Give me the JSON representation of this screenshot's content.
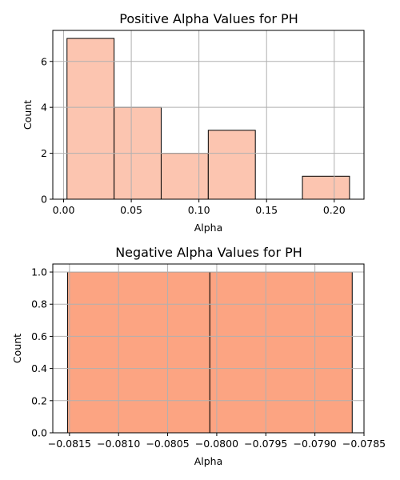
{
  "chart_data": [
    {
      "type": "bar",
      "title": "Positive Alpha Values for PH",
      "xlabel": "Alpha",
      "ylabel": "Count",
      "bins": [
        {
          "start": 0.0025,
          "end": 0.0373,
          "count": 7
        },
        {
          "start": 0.0373,
          "end": 0.0721,
          "count": 4
        },
        {
          "start": 0.0721,
          "end": 0.1069,
          "count": 2
        },
        {
          "start": 0.1069,
          "end": 0.1417,
          "count": 3
        },
        {
          "start": 0.1417,
          "end": 0.1765,
          "count": 0
        },
        {
          "start": 0.1765,
          "end": 0.2113,
          "count": 1
        }
      ],
      "xlim": [
        -0.008,
        0.222
      ],
      "ylim": [
        0,
        7.35
      ],
      "xticks": [
        0.0,
        0.05,
        0.1,
        0.15,
        0.2
      ],
      "xtick_labels": [
        "0.00",
        "0.05",
        "0.10",
        "0.15",
        "0.20"
      ],
      "yticks": [
        0,
        2,
        4,
        6
      ],
      "ytick_labels": [
        "0",
        "2",
        "4",
        "6"
      ],
      "grid": true,
      "bar_color": "#fcc5b0"
    },
    {
      "type": "bar",
      "title": "Negative Alpha Values for PH",
      "xlabel": "Alpha",
      "ylabel": "Count",
      "bins": [
        {
          "start": -0.08152,
          "end": -0.08007,
          "count": 1
        },
        {
          "start": -0.08007,
          "end": -0.07862,
          "count": 1
        }
      ],
      "xlim": [
        -0.08167,
        -0.0785
      ],
      "ylim": [
        0,
        1.05
      ],
      "xticks": [
        -0.0815,
        -0.081,
        -0.0805,
        -0.08,
        -0.0795,
        -0.079,
        -0.0785
      ],
      "xtick_labels": [
        "−0.0815",
        "−0.0810",
        "−0.0805",
        "−0.0800",
        "−0.0795",
        "−0.0790",
        "−0.0785"
      ],
      "yticks": [
        0,
        0.2,
        0.4,
        0.6,
        0.8,
        1.0
      ],
      "ytick_labels": [
        "0.0",
        "0.2",
        "0.4",
        "0.6",
        "0.8",
        "1.0"
      ],
      "grid": true,
      "bar_color": "#fca482"
    }
  ]
}
